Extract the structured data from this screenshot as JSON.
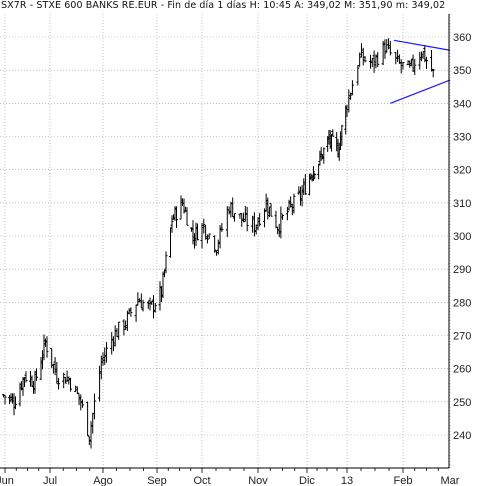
{
  "header": {
    "symbol": "SX7R",
    "name": "STXE 600 BANKS RE.EUR",
    "period": "Fin de día 1 días",
    "stats": "H: 10:45  A: 349,02  M: 351,90  m: 349,02"
  },
  "chart_data": {
    "type": "bar",
    "style": "ohlc",
    "xlabel": "",
    "ylabel": "",
    "ylim": [
      234,
      363
    ],
    "y_axis_side": "right",
    "y_ticks": [
      "360",
      "350",
      "340",
      "330",
      "320",
      "310",
      "300",
      "290",
      "280",
      "270",
      "260",
      "250",
      "240"
    ],
    "x_ticks": [
      "Jun",
      "Jul",
      "Ago",
      "Sep",
      "Oct",
      "Nov",
      "Dic",
      "13",
      "Feb",
      "Mar"
    ],
    "grid": true,
    "grid_style": "dotted",
    "colors": {
      "bars": "#000000",
      "trendlines": "#1a1aff",
      "grid": "#999999"
    },
    "trendlines": [
      {
        "from": {
          "date": "2013-01-27",
          "value": 359
        },
        "to": {
          "date": "2013-03-01",
          "value": 356
        }
      },
      {
        "from": {
          "date": "2013-01-25",
          "value": 340
        },
        "to": {
          "date": "2013-03-01",
          "value": 347
        }
      }
    ],
    "closes_weekly": [
      {
        "x": "2012-05-31",
        "v": 252
      },
      {
        "x": "2012-06-07",
        "v": 250
      },
      {
        "x": "2012-06-14",
        "v": 258
      },
      {
        "x": "2012-06-21",
        "v": 256
      },
      {
        "x": "2012-06-28",
        "v": 268
      },
      {
        "x": "2012-07-05",
        "v": 258
      },
      {
        "x": "2012-07-12",
        "v": 257
      },
      {
        "x": "2012-07-19",
        "v": 250
      },
      {
        "x": "2012-07-24",
        "v": 240
      },
      {
        "x": "2012-07-31",
        "v": 262
      },
      {
        "x": "2012-08-07",
        "v": 270
      },
      {
        "x": "2012-08-14",
        "v": 274
      },
      {
        "x": "2012-08-21",
        "v": 281
      },
      {
        "x": "2012-08-28",
        "v": 278
      },
      {
        "x": "2012-09-04",
        "v": 283
      },
      {
        "x": "2012-09-11",
        "v": 305
      },
      {
        "x": "2012-09-18",
        "v": 310
      },
      {
        "x": "2012-09-25",
        "v": 300
      },
      {
        "x": "2012-10-02",
        "v": 303
      },
      {
        "x": "2012-10-09",
        "v": 297
      },
      {
        "x": "2012-10-16",
        "v": 309
      },
      {
        "x": "2012-10-23",
        "v": 305
      },
      {
        "x": "2012-10-30",
        "v": 303
      },
      {
        "x": "2012-11-06",
        "v": 310
      },
      {
        "x": "2012-11-13",
        "v": 303
      },
      {
        "x": "2012-11-20",
        "v": 308
      },
      {
        "x": "2012-11-27",
        "v": 312
      },
      {
        "x": "2012-12-04",
        "v": 319
      },
      {
        "x": "2012-12-11",
        "v": 323
      },
      {
        "x": "2012-12-18",
        "v": 329
      },
      {
        "x": "2012-12-25",
        "v": 326
      },
      {
        "x": "2013-01-01",
        "v": 340
      },
      {
        "x": "2013-01-08",
        "v": 354
      },
      {
        "x": "2013-01-15",
        "v": 352
      },
      {
        "x": "2013-01-22",
        "v": 357
      },
      {
        "x": "2013-01-29",
        "v": 352
      },
      {
        "x": "2013-02-05",
        "v": 350
      },
      {
        "x": "2013-02-12",
        "v": 356
      },
      {
        "x": "2013-02-19",
        "v": 349
      }
    ]
  }
}
